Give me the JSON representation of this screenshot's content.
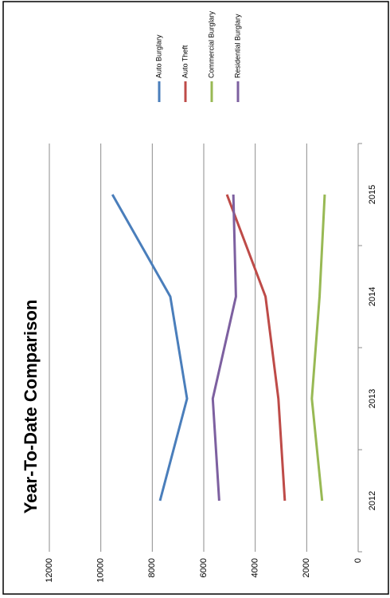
{
  "chart_data": {
    "type": "line",
    "title": "Year-To-Date Comparison",
    "categories": [
      "2012",
      "2013",
      "2014",
      "2015"
    ],
    "series": [
      {
        "name": "Auto Burglary",
        "color": "#4a7ebb",
        "values": [
          7700,
          6650,
          7300,
          9550
        ]
      },
      {
        "name": "Auto Theft",
        "color": "#be4b48",
        "values": [
          2850,
          3100,
          3600,
          5100
        ]
      },
      {
        "name": "Commercial Burglary",
        "color": "#98b954",
        "values": [
          1400,
          1800,
          1500,
          1300
        ]
      },
      {
        "name": "Residential Burglary",
        "color": "#7d60a0",
        "values": [
          5400,
          5650,
          4750,
          4850
        ]
      }
    ],
    "ylim": [
      0,
      12000
    ],
    "yticks": [
      0,
      2000,
      4000,
      6000,
      8000,
      10000,
      12000
    ],
    "grid": true
  }
}
